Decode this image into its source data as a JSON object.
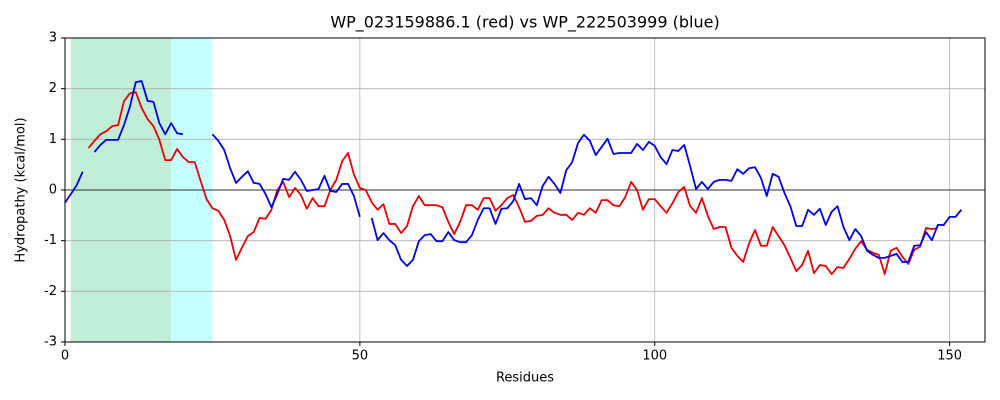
{
  "chart_data": {
    "type": "line",
    "title": "WP_023159886.1 (red) vs WP_222503999 (blue)",
    "x_label": "Residues",
    "y_label": "Hydropathy (kcal/mol)",
    "xlim": [
      0,
      156
    ],
    "ylim": [
      -3,
      3
    ],
    "xticks": [
      0,
      50,
      100,
      150
    ],
    "yticks": [
      -3,
      -2,
      -1,
      0,
      1,
      2,
      3
    ],
    "grid": true,
    "hline": 0,
    "shaded_regions": [
      {
        "start": 1,
        "end": 18,
        "color": "#c1eed6"
      },
      {
        "start": 18,
        "end": 25,
        "color": "#c6ffff"
      }
    ],
    "x": [
      0,
      1,
      2,
      3,
      4,
      5,
      6,
      7,
      8,
      9,
      10,
      11,
      12,
      13,
      14,
      15,
      16,
      17,
      18,
      19,
      20,
      21,
      22,
      23,
      24,
      25,
      26,
      27,
      28,
      29,
      30,
      31,
      32,
      33,
      34,
      35,
      36,
      37,
      38,
      39,
      40,
      41,
      42,
      43,
      44,
      45,
      46,
      47,
      48,
      49,
      50,
      51,
      52,
      53,
      54,
      55,
      56,
      57,
      58,
      59,
      60,
      61,
      62,
      63,
      64,
      65,
      66,
      67,
      68,
      69,
      70,
      71,
      72,
      73,
      74,
      75,
      76,
      77,
      78,
      79,
      80,
      81,
      82,
      83,
      84,
      85,
      86,
      87,
      88,
      89,
      90,
      91,
      92,
      93,
      94,
      95,
      96,
      97,
      98,
      99,
      100,
      101,
      102,
      103,
      104,
      105,
      106,
      107,
      108,
      109,
      110,
      111,
      112,
      113,
      114,
      115,
      116,
      117,
      118,
      119,
      120,
      121,
      122,
      123,
      124,
      125,
      126,
      127,
      128,
      129,
      130,
      131,
      132,
      133,
      134,
      135,
      136,
      137,
      138,
      139,
      140,
      141,
      142,
      143,
      144,
      145,
      146,
      147,
      148,
      149,
      150,
      151,
      152
    ],
    "series": [
      {
        "name": "WP_023159886.1",
        "color": "#ee0000",
        "values": [
          null,
          null,
          null,
          null,
          0.83,
          0.97,
          1.1,
          1.16,
          1.26,
          1.28,
          1.75,
          1.91,
          1.93,
          1.62,
          1.4,
          1.26,
          0.99,
          0.59,
          0.59,
          0.81,
          0.65,
          0.55,
          0.55,
          0.18,
          -0.18,
          -0.36,
          -0.41,
          -0.59,
          -0.91,
          -1.38,
          -1.14,
          -0.91,
          -0.83,
          -0.55,
          -0.57,
          -0.39,
          0,
          0.16,
          -0.14,
          0.04,
          -0.1,
          -0.37,
          -0.16,
          -0.32,
          -0.32,
          0,
          0.2,
          0.57,
          0.73,
          0.3,
          0.04,
          0,
          -0.24,
          -0.39,
          -0.28,
          -0.67,
          -0.67,
          -0.85,
          -0.71,
          -0.32,
          -0.12,
          -0.3,
          -0.3,
          -0.3,
          -0.34,
          -0.63,
          -0.87,
          -0.63,
          -0.3,
          -0.3,
          -0.39,
          -0.16,
          -0.16,
          -0.41,
          -0.3,
          -0.16,
          -0.1,
          -0.34,
          -0.63,
          -0.61,
          -0.51,
          -0.49,
          -0.36,
          -0.45,
          -0.49,
          -0.49,
          -0.59,
          -0.45,
          -0.49,
          -0.36,
          -0.45,
          -0.2,
          -0.2,
          -0.3,
          -0.32,
          -0.14,
          0.16,
          0,
          -0.39,
          -0.18,
          -0.18,
          -0.32,
          -0.45,
          -0.26,
          -0.04,
          0.06,
          -0.32,
          -0.45,
          -0.16,
          -0.51,
          -0.77,
          -0.73,
          -0.73,
          -1.14,
          -1.3,
          -1.42,
          -1.05,
          -0.79,
          -1.1,
          -1.1,
          -0.73,
          -0.91,
          -1.09,
          -1.34,
          -1.6,
          -1.48,
          -1.2,
          -1.64,
          -1.48,
          -1.5,
          -1.66,
          -1.52,
          -1.54,
          -1.36,
          -1.16,
          -1.01,
          -1.18,
          -1.24,
          -1.28,
          -1.66,
          -1.2,
          -1.14,
          -1.32,
          -1.46,
          -1.18,
          -1.12,
          -0.75,
          -0.77,
          -0.75,
          null,
          null,
          null,
          null
        ]
      },
      {
        "name": "WP_222503999",
        "color": "#0000ee",
        "values": [
          -0.25,
          -0.08,
          0.1,
          0.36,
          null,
          0.75,
          0.89,
          0.99,
          0.99,
          0.99,
          1.28,
          1.64,
          2.13,
          2.15,
          1.76,
          1.74,
          1.32,
          1.1,
          1.32,
          1.12,
          1.1,
          null,
          null,
          null,
          null,
          1.1,
          0.97,
          0.79,
          0.43,
          0.14,
          0.26,
          0.37,
          0.14,
          0.12,
          -0.08,
          -0.34,
          -0.08,
          0.22,
          0.2,
          0.36,
          0.2,
          -0.02,
          0,
          0.02,
          0.28,
          -0.02,
          -0.04,
          0.12,
          0.12,
          -0.12,
          -0.53,
          null,
          -0.55,
          -0.99,
          -0.85,
          -0.99,
          -1.09,
          -1.38,
          -1.5,
          -1.38,
          -1.01,
          -0.89,
          -0.87,
          -1.01,
          -1.01,
          -0.83,
          -0.99,
          -1.03,
          -1.03,
          -0.89,
          -0.59,
          -0.36,
          -0.36,
          -0.67,
          -0.37,
          -0.36,
          -0.22,
          0.12,
          -0.18,
          -0.16,
          -0.3,
          0.08,
          0.26,
          0.12,
          -0.06,
          0.39,
          0.55,
          0.93,
          1.09,
          0.97,
          0.69,
          0.85,
          1.01,
          0.71,
          0.73,
          0.73,
          0.73,
          0.91,
          0.79,
          0.95,
          0.87,
          0.65,
          0.51,
          0.79,
          0.77,
          0.89,
          0.47,
          0.02,
          0.16,
          0.02,
          0.16,
          0.2,
          0.2,
          0.18,
          0.41,
          0.32,
          0.43,
          0.45,
          0.24,
          -0.12,
          0.32,
          0.26,
          -0.06,
          -0.32,
          -0.71,
          -0.71,
          -0.39,
          -0.49,
          -0.37,
          -0.69,
          -0.43,
          -0.32,
          -0.73,
          -0.99,
          -0.77,
          -0.91,
          -1.2,
          -1.28,
          -1.34,
          -1.34,
          -1.3,
          -1.26,
          -1.42,
          -1.42,
          -1.1,
          -1.09,
          -0.83,
          -0.99,
          -0.69,
          -0.69,
          -0.53,
          -0.53,
          -0.39
        ]
      }
    ]
  }
}
